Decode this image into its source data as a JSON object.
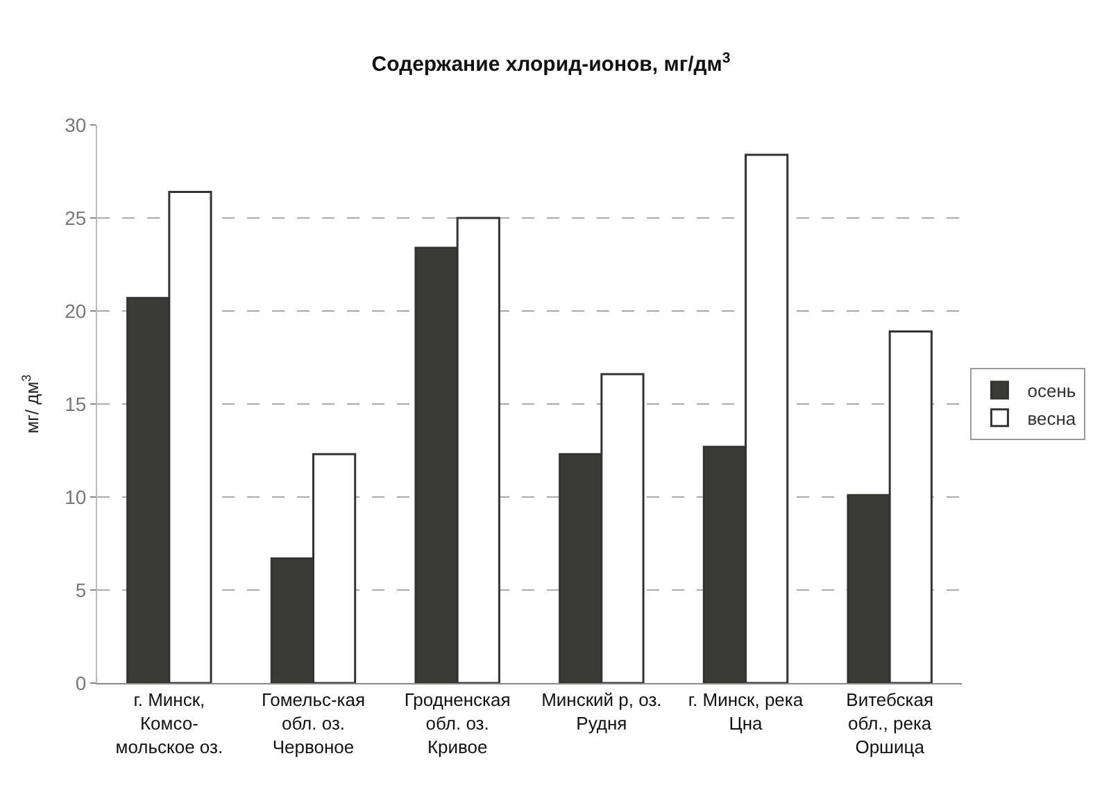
{
  "chart_data": {
    "type": "bar",
    "title": "Содержание хлорид-ионов, мг/дм$^{3}$",
    "ylabel": "мг/ дм$^{3}$",
    "categories": [
      "г. Минск,\nКомсо-\nмольское оз.",
      "Гомельс-кая\nобл. оз.\nЧервоное",
      "Гродненская\nобл. оз.\nКривое",
      "Минский р, оз.\nРудня",
      "г. Минск, река\nЦна",
      "Витебская\nобл., река\nОршица"
    ],
    "series": [
      {
        "name": "осень",
        "color": "#3a3a36",
        "values": [
          20.7,
          6.7,
          23.4,
          12.3,
          12.7,
          10.1
        ]
      },
      {
        "name": "весна",
        "color": "#ffffff",
        "values": [
          26.4,
          12.3,
          25.0,
          16.6,
          28.4,
          18.9
        ]
      }
    ],
    "ylim": [
      0,
      30
    ],
    "yticks": [
      0,
      5,
      10,
      15,
      20,
      25,
      30
    ],
    "grid": "y",
    "legend": "right"
  }
}
